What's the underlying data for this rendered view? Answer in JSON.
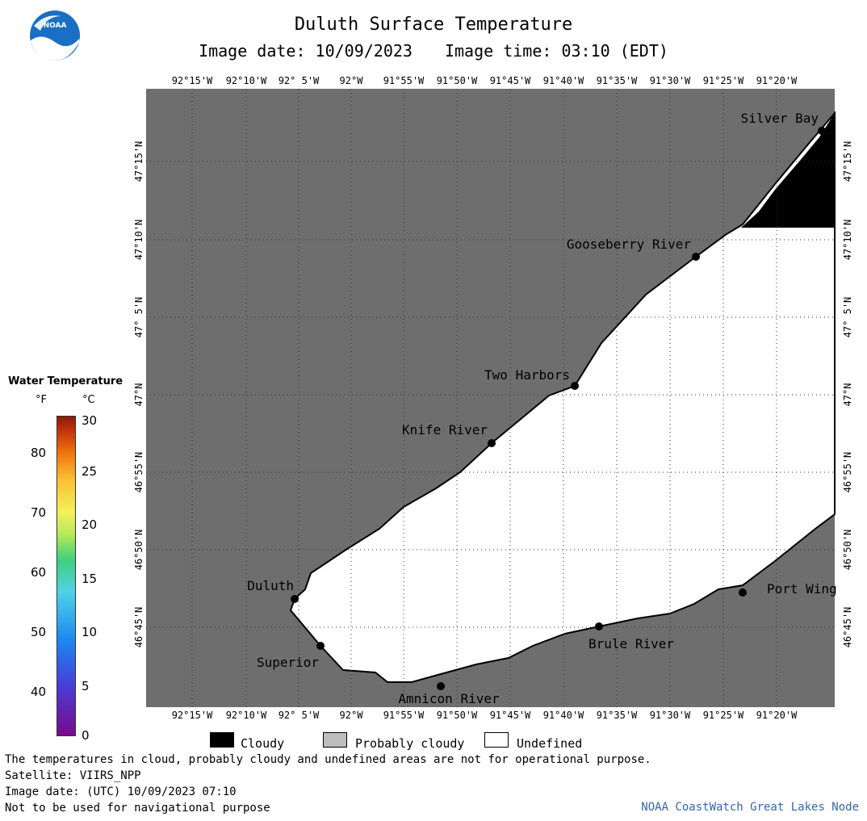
{
  "header": {
    "title": "Duluth Surface Temperature",
    "image_date": "Image date: 10/09/2023",
    "image_time": "Image time: 03:10 (EDT)"
  },
  "logo": {
    "text": "NOAA",
    "icon": "noaa-logo-icon"
  },
  "map": {
    "longitude_labels": [
      "92°15'W",
      "92°10'W",
      "92° 5'W",
      "92°W",
      "91°55'W",
      "91°50'W",
      "91°45'W",
      "91°40'W",
      "91°35'W",
      "91°30'W",
      "91°25'W",
      "91°20'W"
    ],
    "latitude_labels": [
      "47°15'N",
      "47°10'N",
      "47° 5'N",
      "47°N",
      "46°55'N",
      "46°50'N",
      "46°45'N"
    ],
    "places": [
      "Silver Bay",
      "Gooseberry River",
      "Two Harbors",
      "Knife River",
      "Duluth",
      "Superior",
      "Amnicon River",
      "Brule River",
      "Port Wing"
    ],
    "colors": {
      "land": "#6e6e6e",
      "water_undefined": "#ffffff",
      "cloudy": "#000000",
      "probably_cloudy": "#bdbdbd"
    }
  },
  "legend": {
    "title": "Water Temperature",
    "unit_f": "°F",
    "unit_c": "°C",
    "f_ticks": [
      "80",
      "70",
      "60",
      "50",
      "40"
    ],
    "c_ticks": [
      "30",
      "25",
      "20",
      "15",
      "10",
      "5",
      "0"
    ],
    "categories": [
      "Cloudy",
      "Probably cloudy",
      "Undefined"
    ]
  },
  "footer": {
    "lines": [
      "The temperatures in cloud, probably cloudy and undefined areas are not for operational purpose.",
      "Satellite: VIIRS_NPP",
      "Image date: (UTC) 10/09/2023  07:10",
      "Not to be used for navigational purpose"
    ],
    "credit": "NOAA CoastWatch Great Lakes Node"
  }
}
